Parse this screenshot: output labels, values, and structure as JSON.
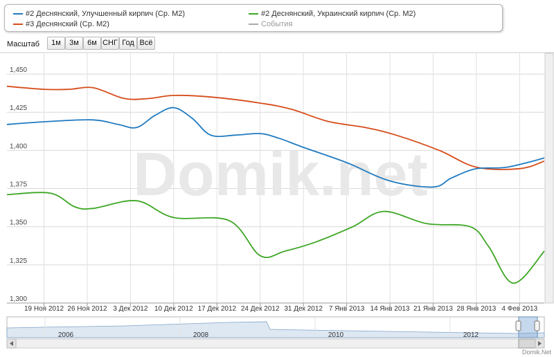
{
  "legend": {
    "items": [
      {
        "label": "#2 Деснянский, Улучшенный кирпич (Ср. M2)",
        "color": "#1f7ac0"
      },
      {
        "label": "#2 Деснянский, Украинский кирпич (Ср. M2)",
        "color": "#3ca623"
      },
      {
        "label": "#3 Деснянский (Ср. M2)",
        "color": "#d64b1a"
      },
      {
        "label": "События",
        "color": "#aaaaaa"
      }
    ]
  },
  "zoom": {
    "label": "Масштаб",
    "buttons": [
      "1м",
      "3м",
      "6м",
      "СНГ",
      "Год",
      "Всё"
    ]
  },
  "watermark": "Domik.net",
  "footer": "Domik.Net",
  "chart_data": {
    "type": "line",
    "ylim": [
      1300,
      1460
    ],
    "yticks": [
      1300,
      1325,
      1350,
      1375,
      1400,
      1425,
      1450
    ],
    "ytick_labels": [
      "1,300",
      "1,325",
      "1,350",
      "1,375",
      "1,400",
      "1,425",
      "1,450"
    ],
    "xlim": [
      "2012-11-13",
      "2013-02-08"
    ],
    "xticks": [
      "2012-11-19",
      "2012-11-26",
      "2012-12-03",
      "2012-12-10",
      "2012-12-17",
      "2012-12-24",
      "2012-12-31",
      "2013-01-07",
      "2013-01-14",
      "2013-01-21",
      "2013-01-28",
      "2013-02-04"
    ],
    "xtick_labels": [
      "19 Ноя 2012",
      "26 Ноя 2012",
      "3 Дек 2012",
      "10 Дек 2012",
      "17 Дек 2012",
      "24 Дек 2012",
      "31 Дек 2012",
      "7 Янв 2013",
      "14 Янв 2013",
      "21 Янв 2013",
      "28 Янв 2013",
      "4 Фев 2013"
    ],
    "grid": true,
    "series": [
      {
        "name": "#3 Деснянский (Ср. M2)",
        "color": "#d64b1a",
        "points": [
          [
            "2012-11-13",
            1442
          ],
          [
            "2012-11-19",
            1440
          ],
          [
            "2012-11-23",
            1440
          ],
          [
            "2012-11-27",
            1441
          ],
          [
            "2012-12-02",
            1434
          ],
          [
            "2012-12-06",
            1434
          ],
          [
            "2012-12-10",
            1436
          ],
          [
            "2012-12-16",
            1435
          ],
          [
            "2012-12-24",
            1431
          ],
          [
            "2012-12-29",
            1427
          ],
          [
            "2013-01-04",
            1419
          ],
          [
            "2013-01-10",
            1415
          ],
          [
            "2013-01-15",
            1410
          ],
          [
            "2013-01-22",
            1400
          ],
          [
            "2013-01-28",
            1389
          ],
          [
            "2013-02-04",
            1388
          ],
          [
            "2013-02-08",
            1393
          ]
        ]
      },
      {
        "name": "#2 Деснянский, Улучшенный кирпич (Ср. M2)",
        "color": "#1f7ac0",
        "points": [
          [
            "2012-11-13",
            1417
          ],
          [
            "2012-11-20",
            1419
          ],
          [
            "2012-11-27",
            1420
          ],
          [
            "2012-12-01",
            1417
          ],
          [
            "2012-12-04",
            1415
          ],
          [
            "2012-12-07",
            1423
          ],
          [
            "2012-12-10",
            1428
          ],
          [
            "2012-12-13",
            1421
          ],
          [
            "2012-12-16",
            1410
          ],
          [
            "2012-12-20",
            1410
          ],
          [
            "2012-12-24",
            1411
          ],
          [
            "2012-12-27",
            1408
          ],
          [
            "2012-12-31",
            1402
          ],
          [
            "2013-01-07",
            1392
          ],
          [
            "2013-01-14",
            1380
          ],
          [
            "2013-01-21",
            1376
          ],
          [
            "2013-01-24",
            1382
          ],
          [
            "2013-01-28",
            1388
          ],
          [
            "2013-02-02",
            1389
          ],
          [
            "2013-02-08",
            1395
          ]
        ]
      },
      {
        "name": "#2 Деснянский, Украинский кирпич (Ср. M2)",
        "color": "#3ca623",
        "points": [
          [
            "2012-11-13",
            1371
          ],
          [
            "2012-11-20",
            1372
          ],
          [
            "2012-11-24",
            1363
          ],
          [
            "2012-11-27",
            1362
          ],
          [
            "2012-12-04",
            1367
          ],
          [
            "2012-12-10",
            1356
          ],
          [
            "2012-12-19",
            1354
          ],
          [
            "2012-12-24",
            1331
          ],
          [
            "2012-12-28",
            1334
          ],
          [
            "2013-01-02",
            1340
          ],
          [
            "2013-01-08",
            1350
          ],
          [
            "2013-01-13",
            1360
          ],
          [
            "2013-01-20",
            1352
          ],
          [
            "2013-01-27",
            1350
          ],
          [
            "2013-01-30",
            1337
          ],
          [
            "2013-02-03",
            1313
          ],
          [
            "2013-02-08",
            1334
          ]
        ]
      }
    ],
    "navigator": {
      "labels": [
        "2006",
        "2008",
        "2010",
        "2012"
      ]
    }
  }
}
